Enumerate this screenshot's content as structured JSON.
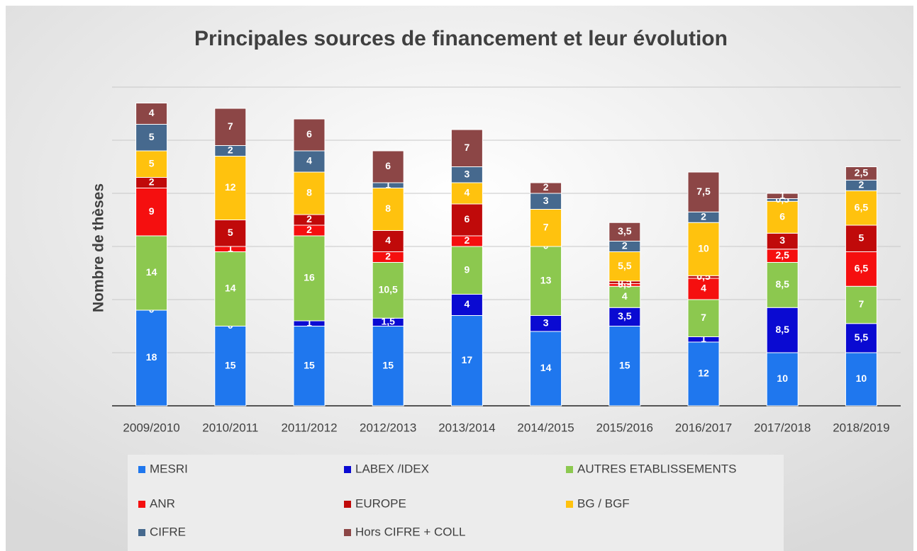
{
  "chart_data": {
    "type": "stacked-bar",
    "title": "Principales sources de financement et leur évolution",
    "y_label": "Nombre de thèses",
    "categories": [
      "2009/2010",
      "2010/2011",
      "2011/2012",
      "2012/2013",
      "2013/2014",
      "2014/2015",
      "2015/2016",
      "2016/2017",
      "2017/2018",
      "2018/2019"
    ],
    "ylim": [
      0,
      60
    ],
    "yticks": [
      0,
      10,
      20,
      30,
      40,
      50,
      60
    ],
    "grid": true,
    "series": [
      {
        "name": "MESRI",
        "color": "#1f77ee",
        "values": [
          18,
          15,
          15,
          15,
          17,
          14,
          15,
          12,
          10,
          10
        ],
        "value_labels": [
          "18",
          "15",
          "15",
          "15",
          "17",
          "14",
          "15",
          "12",
          "10",
          "10"
        ]
      },
      {
        "name": "LABEX /IDEX",
        "color": "#0a0ad2",
        "values": [
          0,
          0,
          1,
          1.5,
          4,
          3,
          3.5,
          1,
          8.5,
          5.5
        ],
        "value_labels": [
          "0",
          "0",
          "1",
          "1,5",
          "4",
          "3",
          "3,5",
          "1",
          "8,5",
          "5,5"
        ]
      },
      {
        "name": "AUTRES ETABLISSEMENTS",
        "color": "#8cc84f",
        "values": [
          14,
          14,
          16,
          10.5,
          9,
          13,
          4,
          7,
          8.5,
          7
        ],
        "value_labels": [
          "14",
          "14",
          "16",
          "10,5",
          "9",
          "13",
          "4",
          "7",
          "8,5",
          "7"
        ]
      },
      {
        "name": "ANR",
        "color": "#f50f0f",
        "values": [
          9,
          1,
          2,
          2,
          2,
          0,
          0.5,
          4,
          2.5,
          6.5
        ],
        "value_labels": [
          "9",
          "1",
          "2",
          "2",
          "2",
          "0",
          "0,5",
          "4",
          "2,5",
          "6,5"
        ]
      },
      {
        "name": "EUROPE",
        "color": "#c00a0a",
        "values": [
          2,
          5,
          2,
          4,
          6,
          null,
          0.5,
          0.5,
          3,
          5
        ],
        "value_labels": [
          "2",
          "5",
          "2",
          "4",
          "6",
          null,
          "0,5",
          "0,5",
          "3",
          "5"
        ]
      },
      {
        "name": "BG / BGF",
        "color": "#ffc20e",
        "values": [
          5,
          12,
          8,
          8,
          4,
          7,
          5.5,
          10,
          6,
          6.5
        ],
        "value_labels": [
          "5",
          "12",
          "8",
          "8",
          "4",
          "7",
          "5,5",
          "10",
          "6",
          "6,5"
        ]
      },
      {
        "name": "CIFRE",
        "color": "#46698e",
        "values": [
          5,
          2,
          4,
          1,
          3,
          3,
          2,
          2,
          0.5,
          2
        ],
        "value_labels": [
          "5",
          "2",
          "4",
          "1",
          "3",
          "3",
          "2",
          "2",
          "0,5",
          "2"
        ]
      },
      {
        "name": "Hors CIFRE + COLL",
        "color": "#8c4646",
        "values": [
          4,
          7,
          6,
          6,
          7,
          2,
          3.5,
          7.5,
          1,
          2.5
        ],
        "value_labels": [
          "4",
          "7",
          "6",
          "6",
          "7",
          "2",
          "3,5",
          "7,5",
          "1",
          "2,5"
        ]
      }
    ]
  }
}
